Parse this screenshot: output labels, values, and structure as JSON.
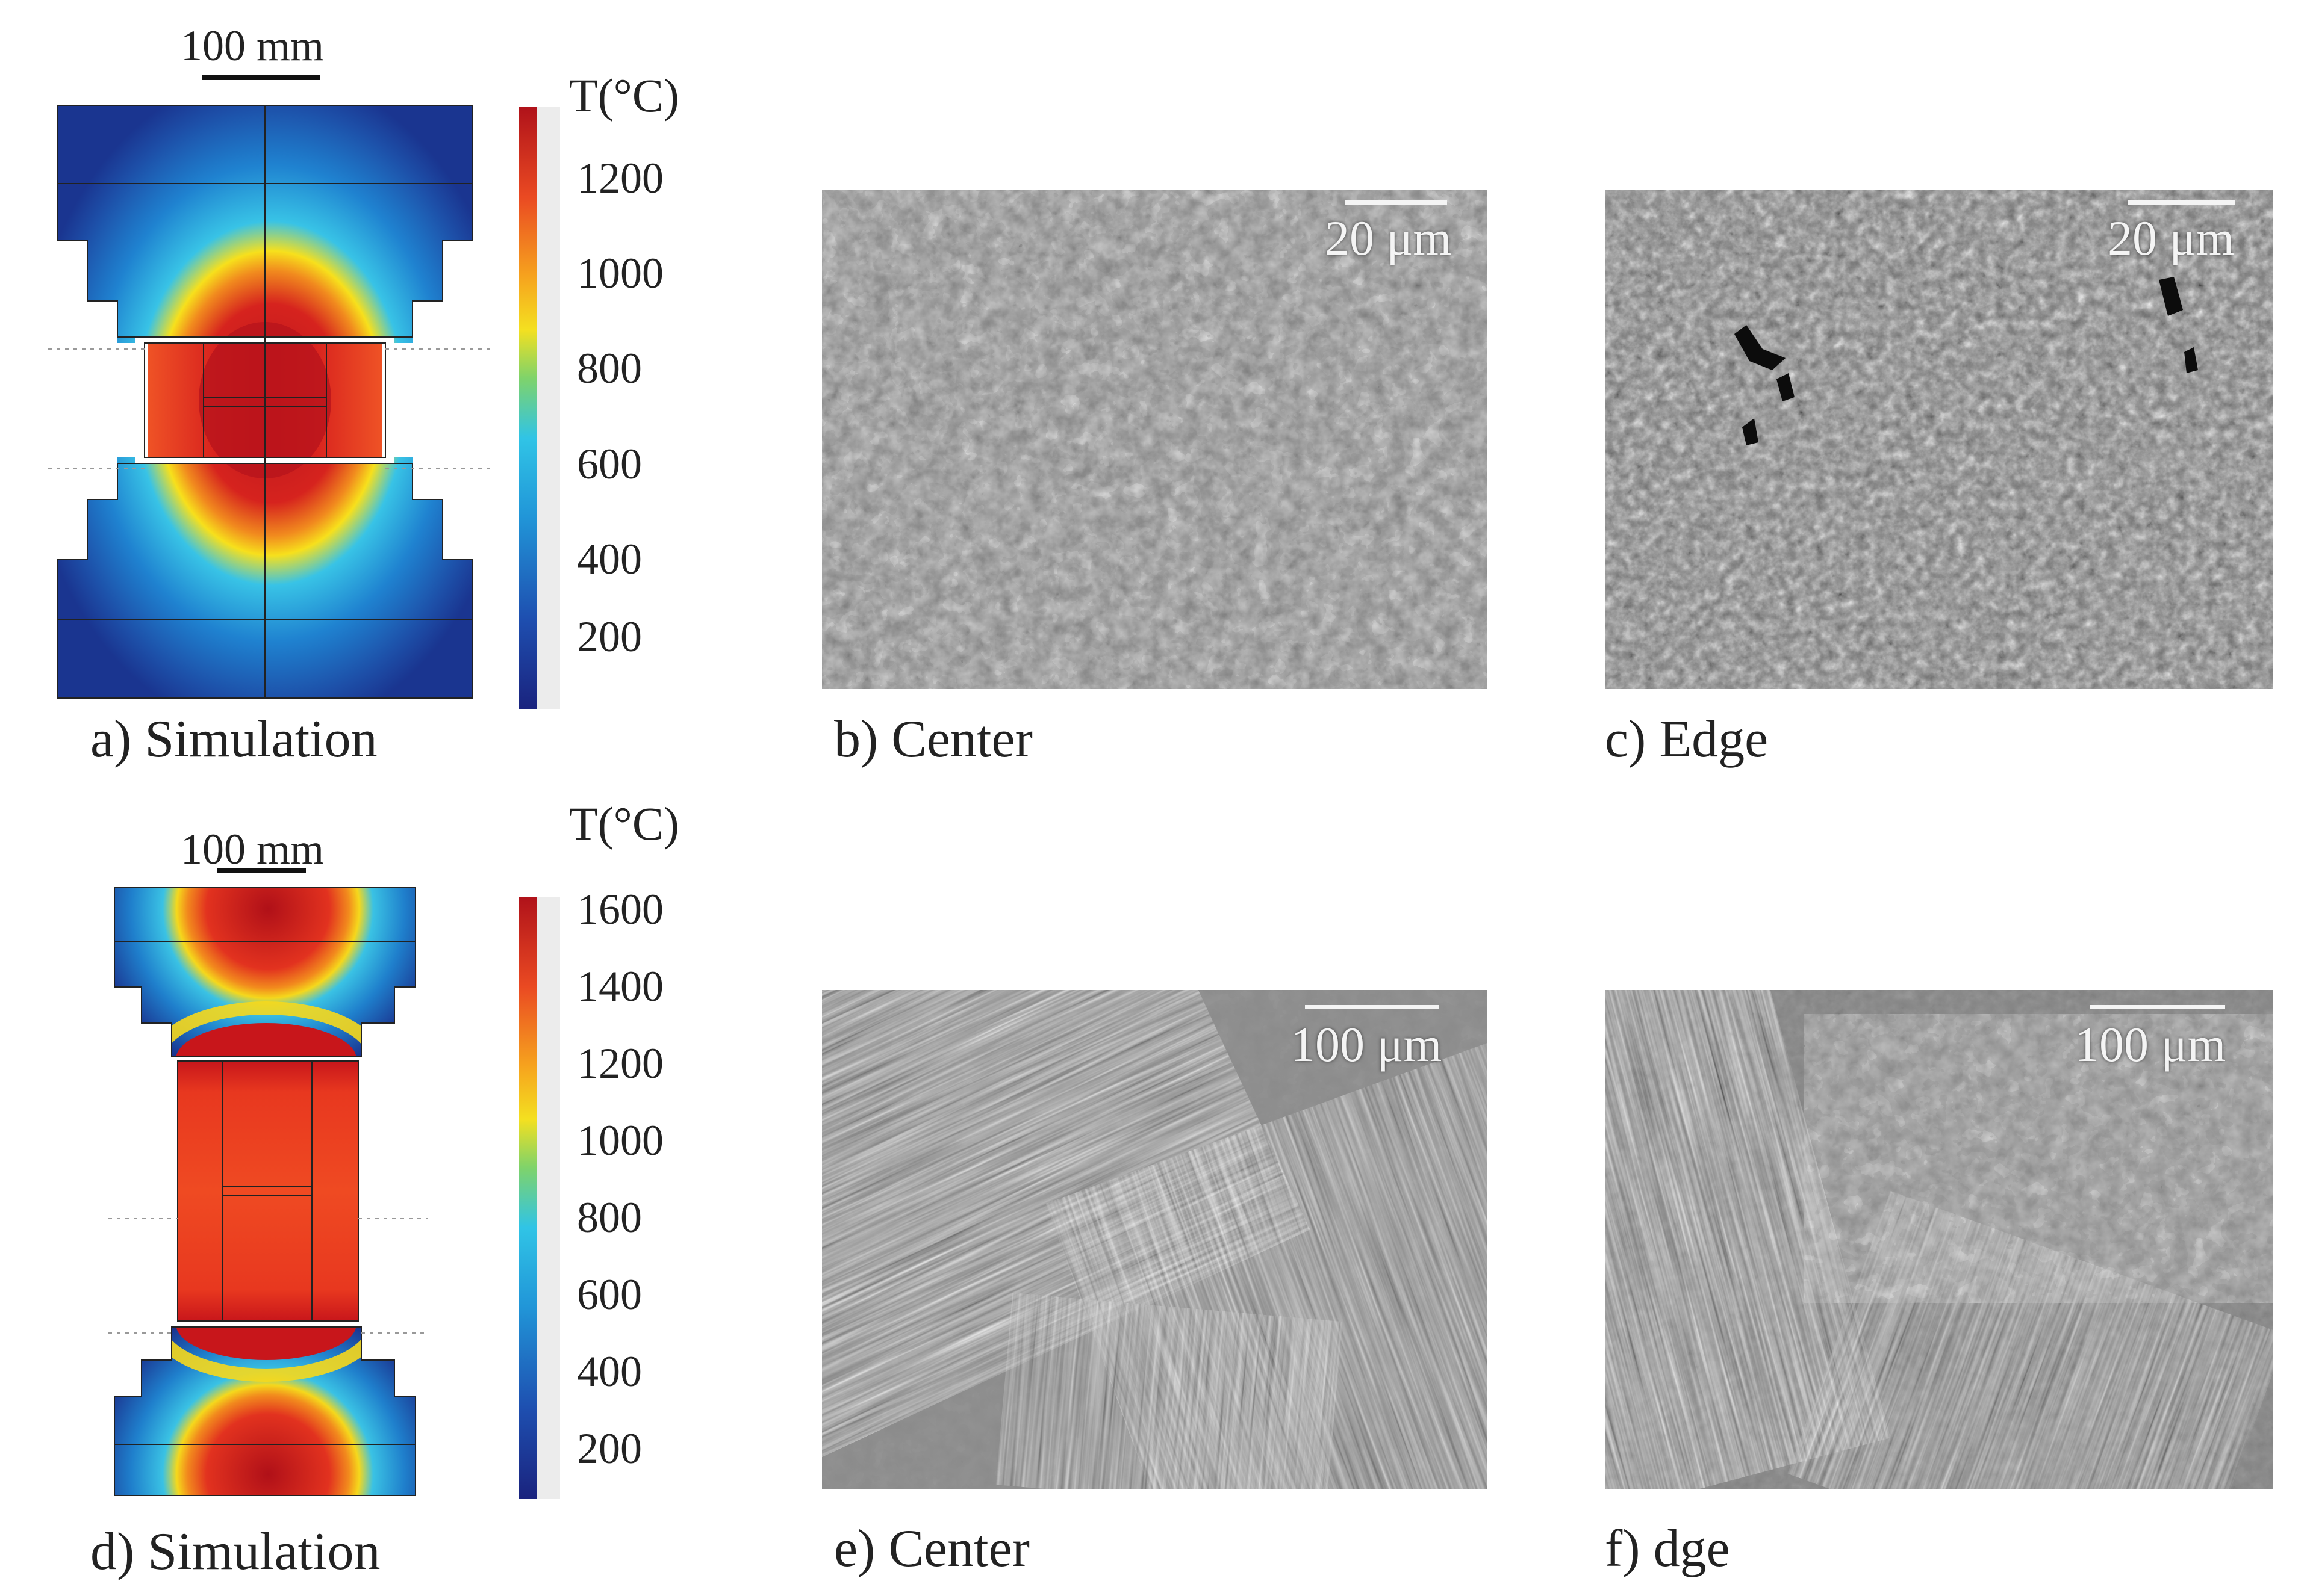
{
  "panels": {
    "a": {
      "caption": "a) Simulation",
      "scale_bar": "100 mm",
      "colorbar_title": "T(°C)",
      "colorbar_ticks": [
        "1200",
        "1000",
        "800",
        "600",
        "400",
        "200"
      ]
    },
    "b": {
      "caption": "b) Center",
      "scale_bar": "20 μm"
    },
    "c": {
      "caption": "c) Edge",
      "scale_bar": "20 μm"
    },
    "d": {
      "caption": "d) Simulation",
      "scale_bar": "100 mm",
      "colorbar_title": "T(°C)",
      "colorbar_ticks": [
        "1600",
        "1400",
        "1200",
        "1000",
        "800",
        "600",
        "400",
        "200"
      ]
    },
    "e": {
      "caption": "e) Center",
      "scale_bar": "100 μm"
    },
    "f": {
      "caption": "f) dge",
      "scale_bar": "100 μm"
    }
  },
  "colors": {
    "hot": "#c8141a",
    "warm": "#ee4a22",
    "yellow": "#f5d800",
    "cyan": "#2bbbe6",
    "blue": "#1d55b4",
    "navy": "#1a2f8c"
  }
}
